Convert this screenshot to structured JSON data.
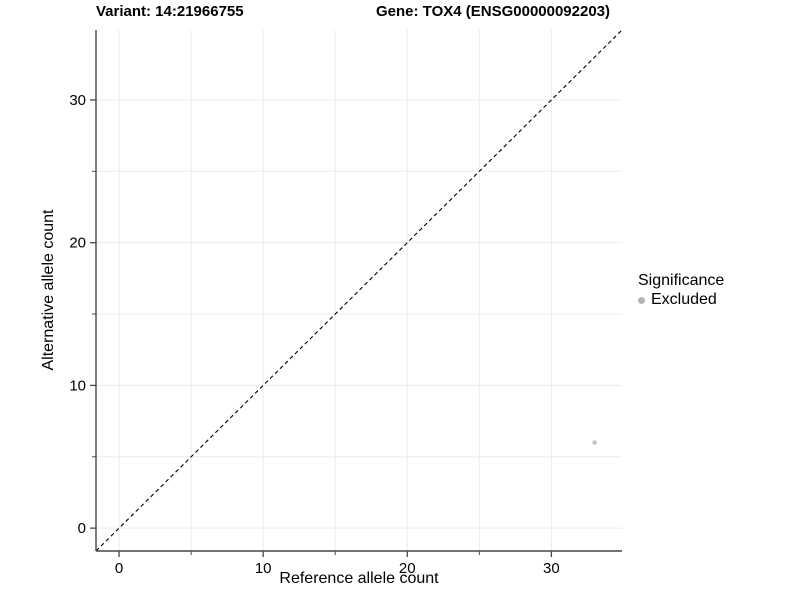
{
  "titles": {
    "variant": "Variant: 14:21966755",
    "gene": "Gene: TOX4 (ENSG00000092203)"
  },
  "chart_data": {
    "type": "scatter",
    "xlabel": "Reference allele count",
    "ylabel": "Alternative allele count",
    "xlim": [
      -1.6,
      34.9
    ],
    "ylim": [
      -1.6,
      34.9
    ],
    "major_ticks": [
      0,
      10,
      20,
      30
    ],
    "minor_ticks": [
      5,
      15,
      25
    ],
    "grid": true,
    "identity_line": {
      "style": "dashed",
      "color": "#000000",
      "dash": "4 3"
    },
    "points": [
      {
        "x": 33,
        "y": 6,
        "series": "Excluded"
      }
    ],
    "legend": {
      "title": "Significance",
      "position": "right",
      "entries": [
        {
          "label": "Excluded",
          "color": "#b4b4b4"
        }
      ]
    },
    "colors": {
      "point": "#c4c4c4",
      "grid": "#ececec",
      "axis": "#474747",
      "tick_text": "#000000"
    }
  }
}
